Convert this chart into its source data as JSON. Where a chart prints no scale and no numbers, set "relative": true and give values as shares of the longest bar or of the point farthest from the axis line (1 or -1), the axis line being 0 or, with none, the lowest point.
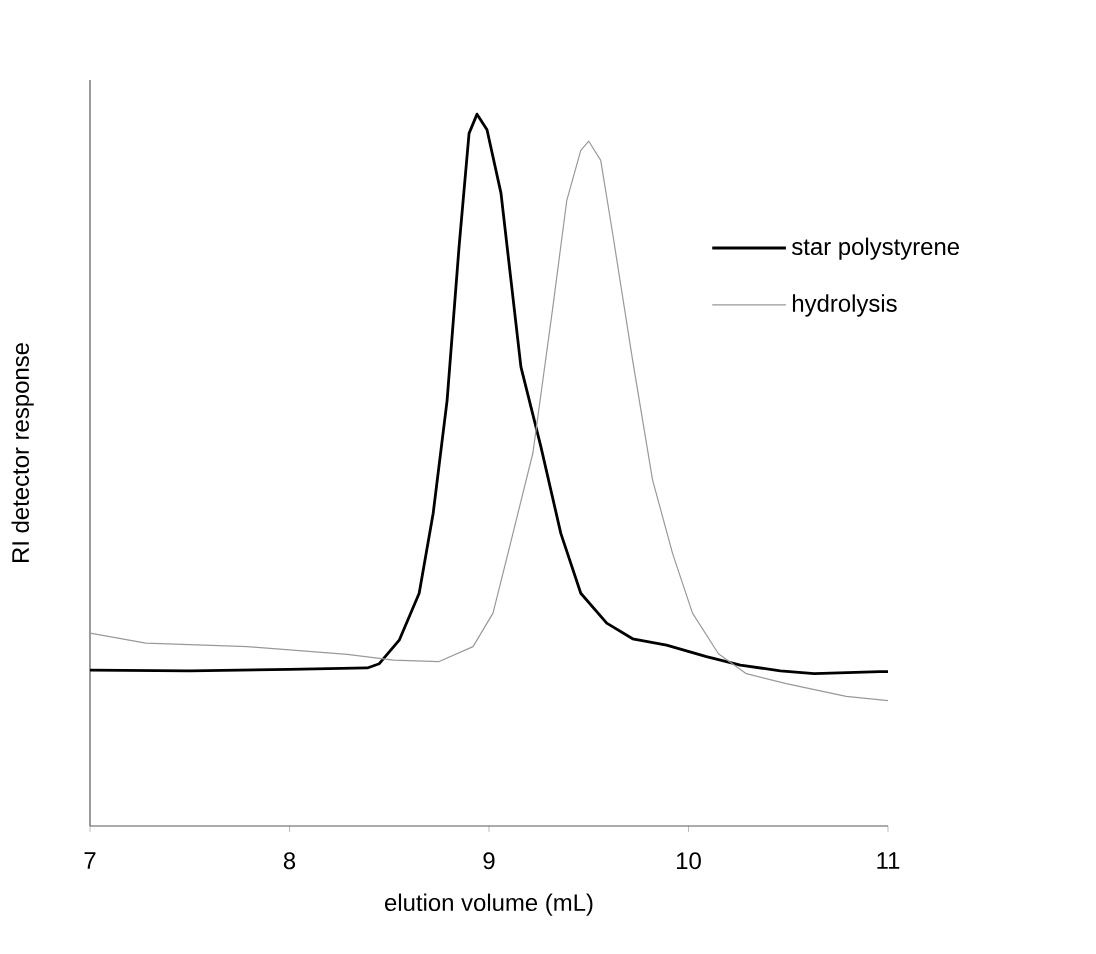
{
  "chart_data": {
    "type": "line",
    "relative": true,
    "xlabel": "elution volume (mL)",
    "ylabel": "RI detector response",
    "xlim": [
      7,
      11
    ],
    "xticks": [
      7,
      8,
      9,
      10,
      11
    ],
    "legend": "top right",
    "grid": false,
    "marker": "none",
    "line_style": "solid",
    "series": [
      {
        "name": "star polystyrene",
        "color": "#000000",
        "x": [
          7.0,
          7.5,
          8.0,
          8.39,
          8.45,
          8.55,
          8.65,
          8.72,
          8.79,
          8.85,
          8.9,
          8.94,
          8.99,
          9.06,
          9.16,
          9.26,
          9.36,
          9.46,
          9.59,
          9.72,
          9.89,
          10.09,
          10.26,
          10.46,
          10.63,
          10.96,
          11.0
        ],
        "values": [
          0.219,
          0.218,
          0.22,
          0.222,
          0.228,
          0.261,
          0.327,
          0.439,
          0.598,
          0.814,
          0.973,
          1.0,
          0.978,
          0.889,
          0.645,
          0.533,
          0.411,
          0.327,
          0.285,
          0.263,
          0.254,
          0.238,
          0.226,
          0.218,
          0.214,
          0.217,
          0.217
        ]
      },
      {
        "name": "hydrolysis",
        "color": "#999999",
        "x": [
          7.0,
          7.28,
          7.79,
          8.29,
          8.52,
          8.75,
          8.92,
          9.02,
          9.12,
          9.22,
          9.32,
          9.39,
          9.46,
          9.5,
          9.56,
          9.62,
          9.72,
          9.82,
          9.92,
          10.02,
          10.15,
          10.29,
          10.49,
          10.79,
          11.0
        ],
        "values": [
          0.271,
          0.257,
          0.252,
          0.241,
          0.233,
          0.231,
          0.252,
          0.299,
          0.411,
          0.524,
          0.729,
          0.879,
          0.949,
          0.962,
          0.935,
          0.832,
          0.654,
          0.486,
          0.383,
          0.299,
          0.242,
          0.214,
          0.2,
          0.182,
          0.176
        ]
      }
    ]
  }
}
